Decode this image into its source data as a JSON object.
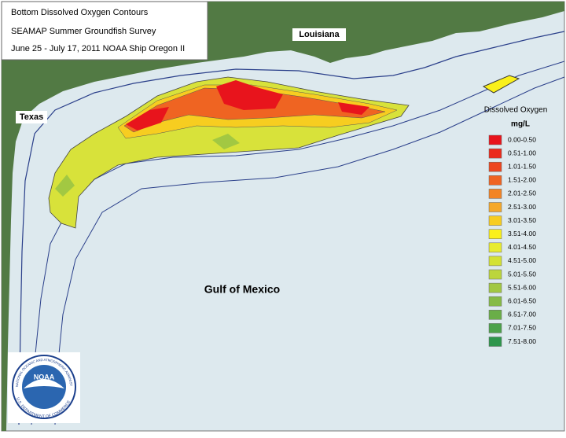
{
  "header": {
    "lines": [
      "Bottom Dissolved Oxygen Contours",
      "SEAMAP Summer Groundfish Survey",
      "June 25 - July 17, 2011 NOAA Ship Oregon II"
    ]
  },
  "labels": {
    "louisiana": "Louisiana",
    "texas": "Texas",
    "gulf": "Gulf of Mexico"
  },
  "logo": {
    "text": "NOAA",
    "ring_top": "NATIONAL OCEANIC AND ATMOSPHERIC ADMINISTRATION",
    "ring_bottom": "U.S. DEPARTMENT OF COMMERCE"
  },
  "legend": {
    "title": "Dissolved Oxygen",
    "unit": "mg/L",
    "items": [
      {
        "label": "0.00-0.50",
        "color": "#e8141c"
      },
      {
        "label": "0.51-1.00",
        "color": "#ea2a1c"
      },
      {
        "label": "1.01-1.50",
        "color": "#ed461f"
      },
      {
        "label": "1.51-2.00",
        "color": "#ef6422"
      },
      {
        "label": "2.01-2.50",
        "color": "#f28426"
      },
      {
        "label": "2.51-3.00",
        "color": "#f5a82a"
      },
      {
        "label": "3.01-3.50",
        "color": "#f7cd20"
      },
      {
        "label": "3.51-4.00",
        "color": "#faf01a"
      },
      {
        "label": "4.01-4.50",
        "color": "#e8ec30"
      },
      {
        "label": "4.51-5.00",
        "color": "#d4e234"
      },
      {
        "label": "5.01-5.50",
        "color": "#bcd53c"
      },
      {
        "label": "5.51-6.00",
        "color": "#a2c842"
      },
      {
        "label": "6.01-6.50",
        "color": "#86bb46"
      },
      {
        "label": "6.51-7.00",
        "color": "#6aae48"
      },
      {
        "label": "7.01-7.50",
        "color": "#4ca24a"
      },
      {
        "label": "7.51-8.00",
        "color": "#2e964c"
      }
    ]
  }
}
